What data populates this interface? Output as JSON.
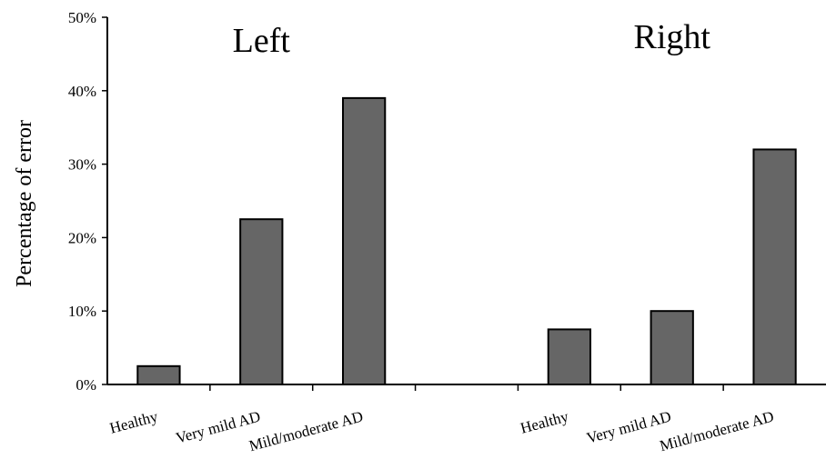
{
  "chart_data": {
    "type": "bar",
    "title": "",
    "ylabel": "Percentage of error",
    "xlabel": "",
    "ylim": [
      0,
      50
    ],
    "yticks": [
      "0%",
      "10%",
      "20%",
      "30%",
      "40%",
      "50%"
    ],
    "bar_color": "#666666",
    "panels": [
      {
        "name": "Left",
        "categories": [
          "Healthy",
          "Very mild AD",
          "Mild/moderate AD"
        ],
        "values": [
          2.5,
          22.5,
          39
        ]
      },
      {
        "name": "Right",
        "categories": [
          "Healthy",
          "Very mild AD",
          "Mild/moderate AD"
        ],
        "values": [
          7.5,
          10,
          32
        ]
      }
    ]
  }
}
